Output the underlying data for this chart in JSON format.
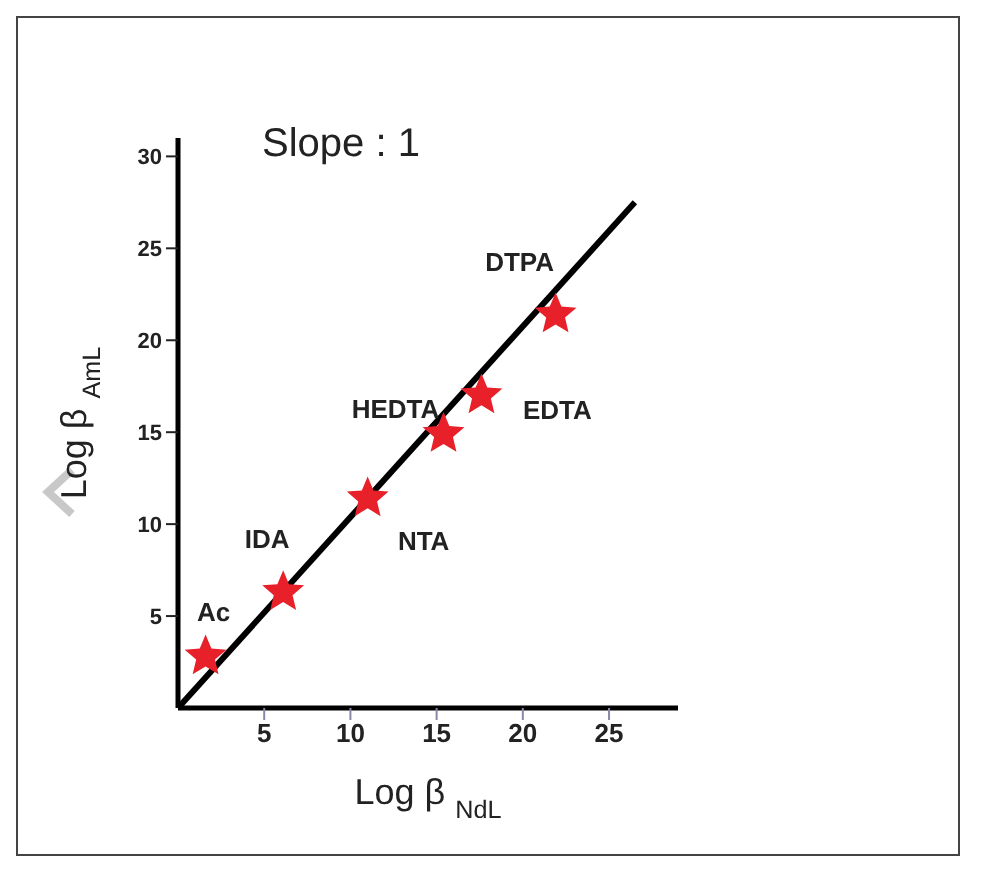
{
  "chart_data": {
    "type": "scatter",
    "xlabel": "Log β $_{NdL}$",
    "ylabel": "Log β $_{AmL}$",
    "xlim": [
      0,
      29
    ],
    "ylim": [
      0,
      31
    ],
    "xticks": [
      5,
      10,
      15,
      20,
      25
    ],
    "yticks": [
      5,
      10,
      15,
      20,
      25,
      30
    ],
    "grid": false,
    "legend": false,
    "marker": "star",
    "annotations": [
      "Slope : 1",
      {
        "text": "Ac",
        "x": 1.6,
        "y": 2.8
      },
      {
        "text": "IDA",
        "x": 6.1,
        "y": 6.3
      },
      {
        "text": "NTA",
        "x": 11,
        "y": 11.4
      },
      {
        "text": "HEDTA",
        "x": 15.4,
        "y": 14.9
      },
      {
        "text": "EDTA",
        "x": 17.6,
        "y": 17
      },
      {
        "text": "DTPA",
        "x": 21.9,
        "y": 21.4
      }
    ],
    "series": [
      {
        "type": "line",
        "color": "#000000",
        "x": [
          0,
          26.5
        ],
        "values": [
          0,
          27.5
        ],
        "marker": "none"
      },
      {
        "color": "#e8202a",
        "x": [
          1.6,
          6.1,
          11,
          15.4,
          17.6,
          21.9
        ],
        "values": [
          2.8,
          6.3,
          11.4,
          14.9,
          17,
          21.4
        ]
      }
    ]
  }
}
